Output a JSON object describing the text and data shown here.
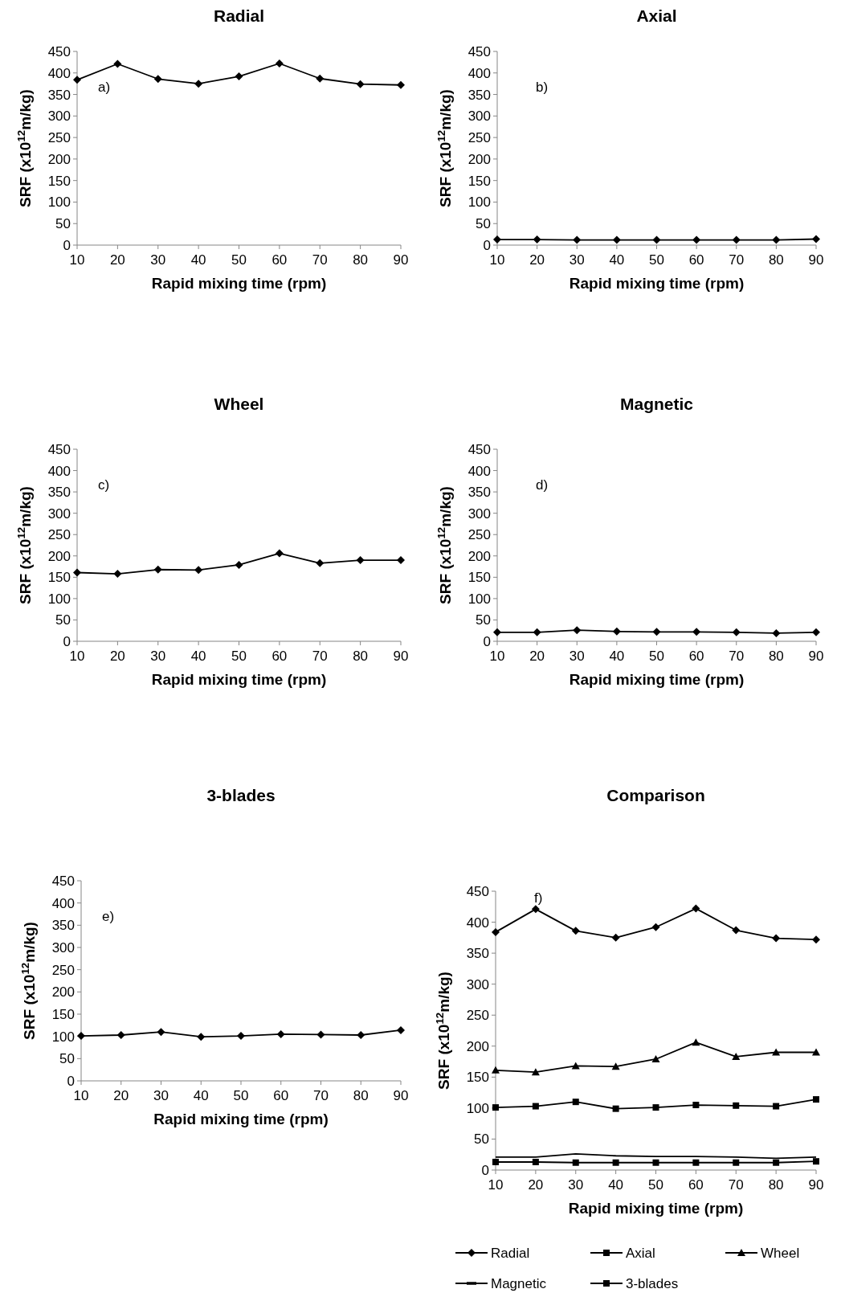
{
  "chart_data": [
    {
      "type": "line",
      "title": "Radial",
      "xlabel": "Rapid mixing time (rpm)",
      "ylabel": "SRF (x10$^{12}$m/kg)",
      "annotations": [
        "a)"
      ],
      "x": [
        10,
        20,
        30,
        40,
        50,
        60,
        70,
        80,
        90
      ],
      "xlim": [
        10,
        90
      ],
      "xticks": [
        10,
        20,
        30,
        40,
        50,
        60,
        70,
        80,
        90
      ],
      "ylim": [
        0,
        450
      ],
      "yticks": [
        0,
        50,
        100,
        150,
        200,
        250,
        300,
        350,
        400,
        450
      ],
      "grid": false,
      "marker": "diamond",
      "line_style": "solid",
      "series": [
        {
          "color": "#000000",
          "values": [
            384,
            421,
            386,
            375,
            392,
            422,
            387,
            374,
            372
          ]
        }
      ]
    },
    {
      "type": "line",
      "title": "Axial",
      "xlabel": "Rapid mixing time (rpm)",
      "ylabel": "SRF (x10$^{12}$m/kg)",
      "annotations": [
        "b)"
      ],
      "x": [
        10,
        20,
        30,
        40,
        50,
        60,
        70,
        80,
        90
      ],
      "xlim": [
        10,
        90
      ],
      "xticks": [
        10,
        20,
        30,
        40,
        50,
        60,
        70,
        80,
        90
      ],
      "ylim": [
        0,
        450
      ],
      "yticks": [
        0,
        50,
        100,
        150,
        200,
        250,
        300,
        350,
        400,
        450
      ],
      "grid": false,
      "marker": "diamond",
      "line_style": "solid",
      "series": [
        {
          "color": "#000000",
          "values": [
            13,
            13,
            12,
            12,
            12,
            12,
            12,
            12,
            14
          ]
        }
      ]
    },
    {
      "type": "line",
      "title": "Wheel",
      "xlabel": "Rapid mixing time (rpm)",
      "ylabel": "SRF (x10$^{12}$m/kg)",
      "annotations": [
        "c)"
      ],
      "x": [
        10,
        20,
        30,
        40,
        50,
        60,
        70,
        80,
        90
      ],
      "xlim": [
        10,
        90
      ],
      "xticks": [
        10,
        20,
        30,
        40,
        50,
        60,
        70,
        80,
        90
      ],
      "ylim": [
        0,
        450
      ],
      "yticks": [
        0,
        50,
        100,
        150,
        200,
        250,
        300,
        350,
        400,
        450
      ],
      "grid": false,
      "marker": "diamond",
      "line_style": "solid",
      "series": [
        {
          "color": "#000000",
          "values": [
            161,
            158,
            168,
            167,
            179,
            206,
            183,
            190,
            190
          ]
        }
      ]
    },
    {
      "type": "line",
      "title": "Magnetic",
      "xlabel": "Rapid mixing time (rpm)",
      "ylabel": "SRF (x10$^{12}$m/kg)",
      "annotations": [
        "d)"
      ],
      "x": [
        10,
        20,
        30,
        40,
        50,
        60,
        70,
        80,
        90
      ],
      "xlim": [
        10,
        90
      ],
      "xticks": [
        10,
        20,
        30,
        40,
        50,
        60,
        70,
        80,
        90
      ],
      "ylim": [
        0,
        450
      ],
      "yticks": [
        0,
        50,
        100,
        150,
        200,
        250,
        300,
        350,
        400,
        450
      ],
      "grid": false,
      "marker": "diamond",
      "line_style": "solid",
      "series": [
        {
          "color": "#000000",
          "values": [
            21,
            21,
            26,
            23,
            22,
            22,
            21,
            19,
            21
          ]
        }
      ]
    },
    {
      "type": "line",
      "title": "3-blades",
      "xlabel": "Rapid mixing time (rpm)",
      "ylabel": "SRF (x10$^{12}$m/kg)",
      "annotations": [
        "e)"
      ],
      "x": [
        10,
        20,
        30,
        40,
        50,
        60,
        70,
        80,
        90
      ],
      "xlim": [
        10,
        90
      ],
      "xticks": [
        10,
        20,
        30,
        40,
        50,
        60,
        70,
        80,
        90
      ],
      "ylim": [
        0,
        450
      ],
      "yticks": [
        0,
        50,
        100,
        150,
        200,
        250,
        300,
        350,
        400,
        450
      ],
      "grid": false,
      "marker": "diamond",
      "line_style": "solid",
      "series": [
        {
          "color": "#000000",
          "values": [
            101,
            103,
            110,
            99,
            101,
            105,
            104,
            103,
            114
          ]
        }
      ]
    },
    {
      "type": "line",
      "title": "Comparison",
      "xlabel": "Rapid mixing time (rpm)",
      "ylabel": "SRF (x10$^{12}$m/kg)",
      "annotations": [
        "f)"
      ],
      "x": [
        10,
        20,
        30,
        40,
        50,
        60,
        70,
        80,
        90
      ],
      "xlim": [
        10,
        90
      ],
      "xticks": [
        10,
        20,
        30,
        40,
        50,
        60,
        70,
        80,
        90
      ],
      "ylim": [
        0,
        450
      ],
      "yticks": [
        0,
        50,
        100,
        150,
        200,
        250,
        300,
        350,
        400,
        450
      ],
      "grid": false,
      "legend": "bottom",
      "line_style": "solid",
      "series": [
        {
          "name": "Radial",
          "color": "#000000",
          "marker": "diamond",
          "values": [
            384,
            421,
            386,
            375,
            392,
            422,
            387,
            374,
            372
          ]
        },
        {
          "name": "Axial",
          "color": "#000000",
          "marker": "square",
          "values": [
            13,
            13,
            12,
            12,
            12,
            12,
            12,
            12,
            14
          ]
        },
        {
          "name": "Wheel",
          "color": "#000000",
          "marker": "triangle",
          "values": [
            161,
            158,
            168,
            167,
            179,
            206,
            183,
            190,
            190
          ]
        },
        {
          "name": "Magnetic",
          "color": "#000000",
          "marker": "none",
          "values": [
            21,
            21,
            26,
            23,
            22,
            22,
            21,
            19,
            21
          ]
        },
        {
          "name": "3-blades",
          "color": "#000000",
          "marker": "square",
          "values": [
            101,
            103,
            110,
            99,
            101,
            105,
            104,
            103,
            114
          ]
        }
      ]
    }
  ]
}
